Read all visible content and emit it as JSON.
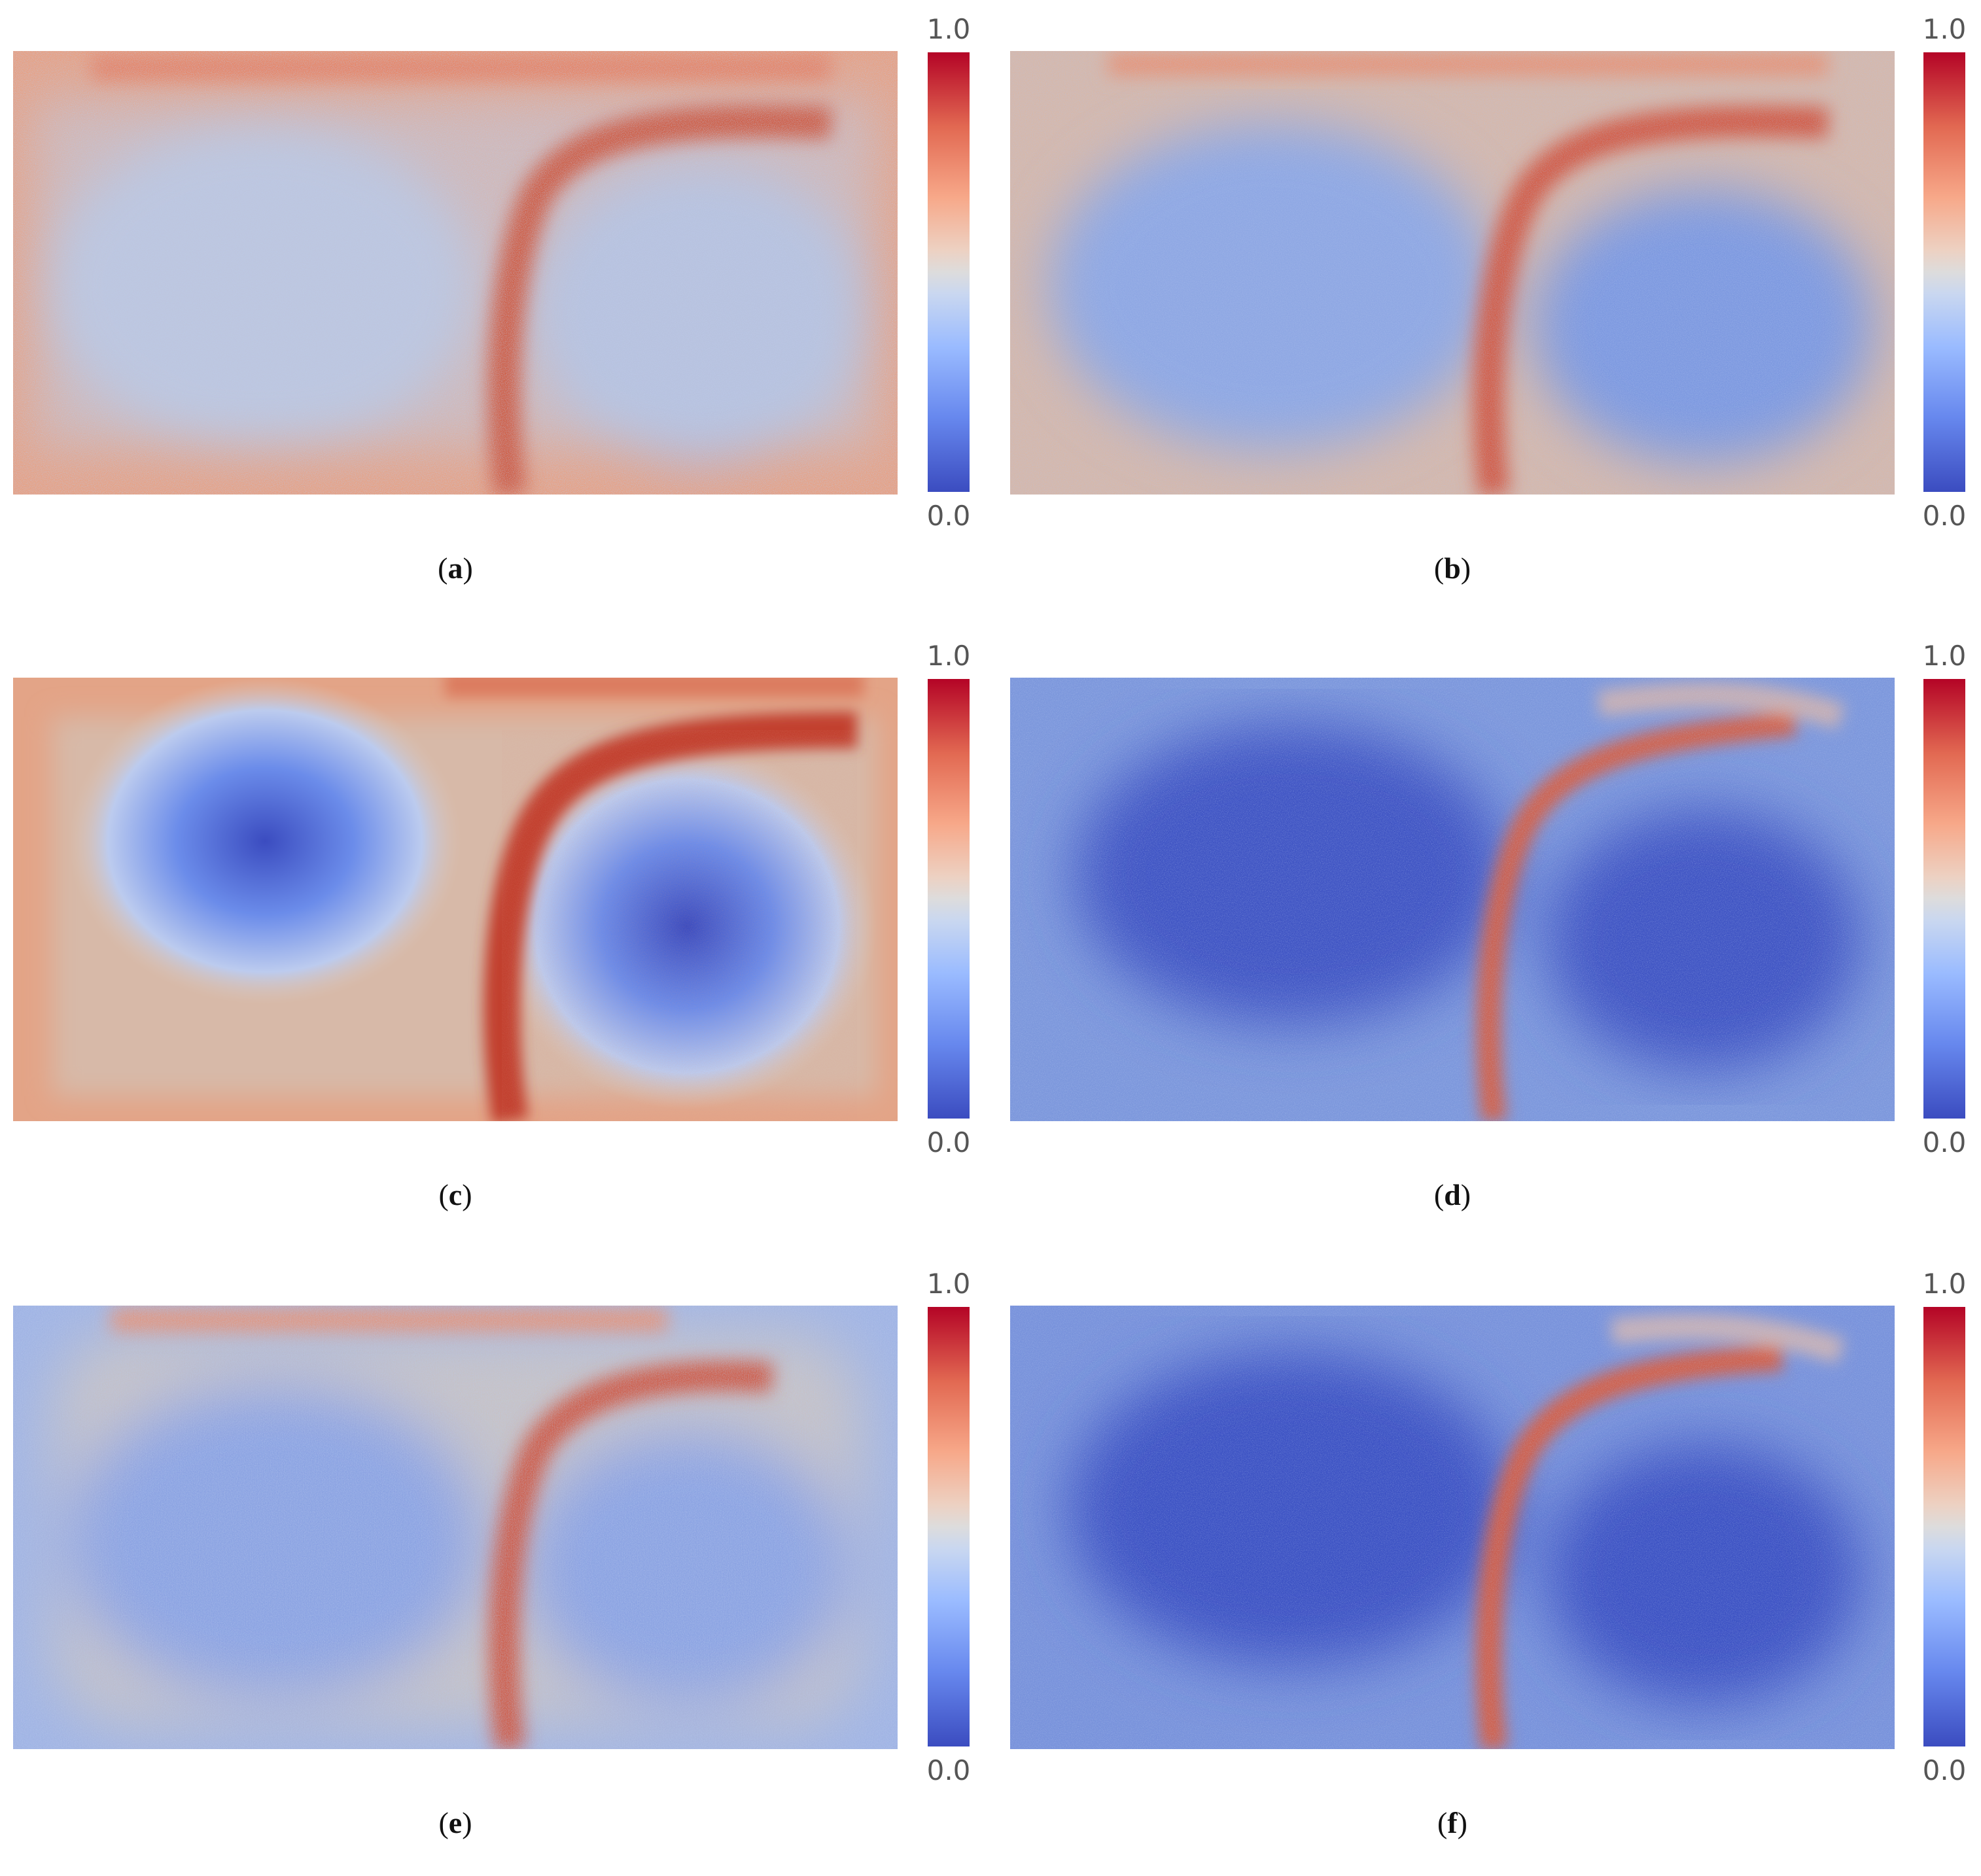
{
  "colorbar": {
    "max_label": "1.0",
    "min_label": "0.0",
    "colormap": "coolwarm",
    "colors": {
      "low": "#3b4cc0",
      "mid": "#dddcdc",
      "high": "#b40426"
    }
  },
  "panels": [
    {
      "caption": "a",
      "noise": "heavy",
      "background": "warm"
    },
    {
      "caption": "b",
      "noise": "moderate",
      "background": "neutral"
    },
    {
      "caption": "c",
      "noise": "none",
      "background": "warm"
    },
    {
      "caption": "d",
      "noise": "moderate",
      "background": "cool"
    },
    {
      "caption": "e",
      "noise": "heavy",
      "background": "neutral"
    },
    {
      "caption": "f",
      "noise": "moderate",
      "background": "cool"
    }
  ]
}
